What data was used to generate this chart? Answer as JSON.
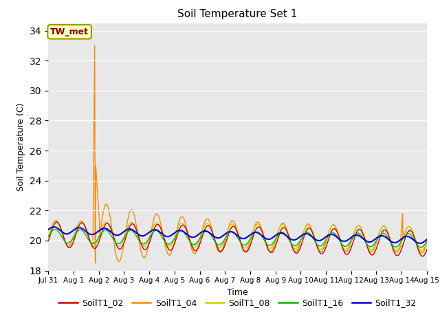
{
  "title": "Soil Temperature Set 1",
  "ylabel": "Soil Temperature (C)",
  "xlabel": "Time",
  "ylim": [
    18,
    34.5
  ],
  "yticks": [
    18,
    20,
    22,
    24,
    26,
    28,
    30,
    32,
    34
  ],
  "bg_color": "#e8e8e8",
  "series": {
    "SoilT1_02": {
      "color": "#cc0000",
      "lw": 1.0
    },
    "SoilT1_04": {
      "color": "#ff8800",
      "lw": 1.0
    },
    "SoilT1_08": {
      "color": "#cccc00",
      "lw": 1.0
    },
    "SoilT1_16": {
      "color": "#00bb00",
      "lw": 1.0
    },
    "SoilT1_32": {
      "color": "#0000cc",
      "lw": 1.5
    }
  },
  "annotation_text": "TW_met",
  "annotation_color": "#880000",
  "annotation_bg": "#ffffcc",
  "annotation_border": "#999900",
  "tick_labels": [
    "Jul 31",
    "Aug 1",
    "Aug 2",
    "Aug 3",
    "Aug 4",
    "Aug 5",
    "Aug 6",
    "Aug 7",
    "Aug 8",
    "Aug 9",
    "Aug 10",
    "Aug 11",
    "Aug 12",
    "Aug 13",
    "Aug 14",
    "Aug 15"
  ]
}
